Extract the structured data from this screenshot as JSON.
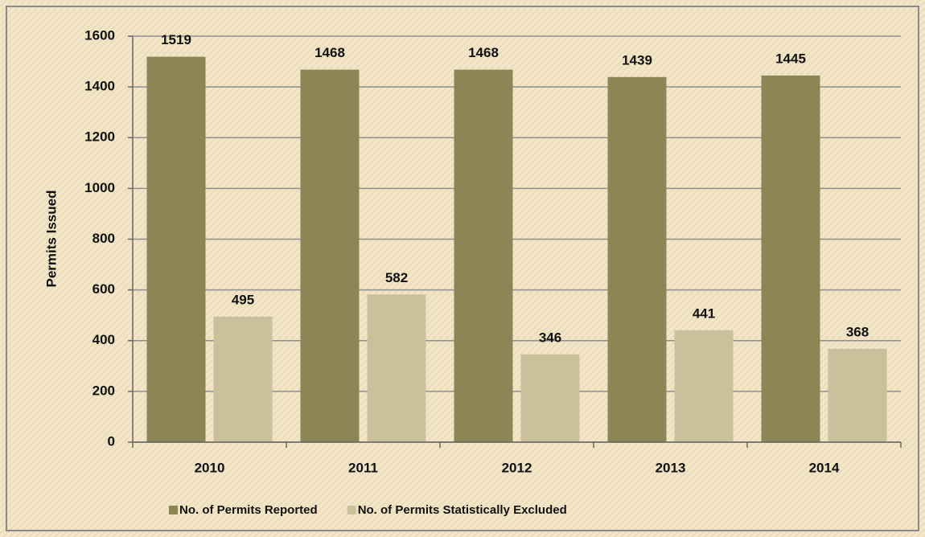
{
  "chart_data": {
    "type": "bar",
    "y_label": "Permits Issued",
    "categories": [
      "2010",
      "2011",
      "2012",
      "2013",
      "2014"
    ],
    "series": [
      {
        "name": "No. of Permits Reported",
        "color": "#8c8556",
        "values": [
          1519,
          1468,
          1468,
          1439,
          1445
        ]
      },
      {
        "name": "No. of Permits Statistically Excluded",
        "color": "#c9c19c",
        "values": [
          495,
          582,
          346,
          441,
          368
        ]
      }
    ],
    "ylim": [
      0,
      1600
    ],
    "yticks": [
      0,
      200,
      400,
      600,
      800,
      1000,
      1200,
      1400,
      1600
    ],
    "grid": true,
    "legend": "bottom"
  }
}
